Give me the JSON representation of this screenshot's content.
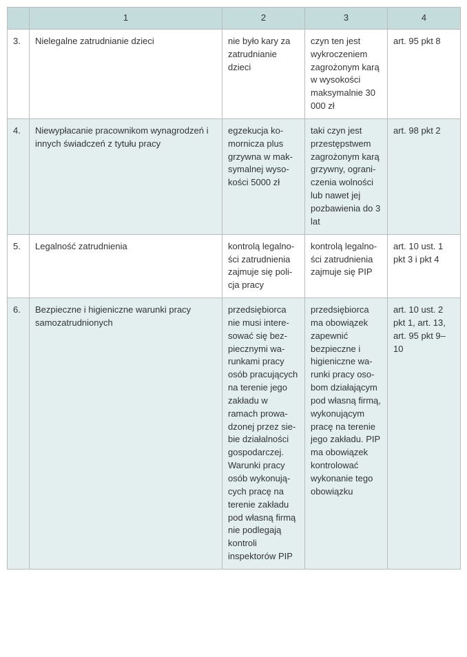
{
  "header": {
    "h0": "",
    "h1": "1",
    "h2": "2",
    "h3": "3",
    "h4": "4"
  },
  "rows": [
    {
      "num": "3.",
      "c1": "Nielegalne zatrudnianie dzieci",
      "c2": "nie było kary za zatrudnianie dzieci",
      "c3": "czyn ten jest wykroczeniem zagrożonym karą w wysokości maksymalnie 30 000 zł",
      "c4": "art. 95 pkt 8",
      "alt": false
    },
    {
      "num": "4.",
      "c1": "Niewypłacanie pracownikom wynagrodzeń i innych świadczeń z tytułu pracy",
      "c2": "egzekucja ko­mornicza plus grzywna w mak­symalnej wyso­kości 5000 zł",
      "c3": "taki czyn jest przestępstwem zagrożonym karą grzywny, ograni­czenia wolności lub nawet jej pozbawienia  do 3 lat",
      "c4": "art. 98 pkt 2",
      "alt": true
    },
    {
      "num": "5.",
      "c1": "Legalność zatrudnienia",
      "c2": "kontrolą legalno­ści zatrudnienia zajmuje się poli­cja pracy",
      "c3": "kontrolą legalno­ści zatrudnienia zajmuje się PIP",
      "c4": "art. 10 ust. 1 pkt 3 i pkt 4",
      "alt": false
    },
    {
      "num": "6.",
      "c1": "Bezpieczne i higieniczne warunki pracy samozatrudnionych",
      "c2": "przedsiębiorca nie musi intere­sować się bez­piecznymi wa­runkami pracy osób pracują­cych na terenie jego zakładu w ramach prowa­dzonej przez sie­bie działalności gospodarczej. Warunki pracy osób wykonują­cych pracę na terenie zakładu pod własną firmą nie podle­gają kontroli inspektorów PIP",
      "c3": "przedsiębiorca ma obowiązek zapewnić bezpieczne i higieniczne wa­runki pracy oso­bom działającym pod własną firmą, wykonują­cym pracę na terenie jego zakładu. PIP ma obowiązek kontrolować wykonanie tego obowiązku",
      "c4": "art. 10 ust. 2 pkt 1, art. 13, art. 95 pkt 9–10",
      "alt": true
    }
  ]
}
